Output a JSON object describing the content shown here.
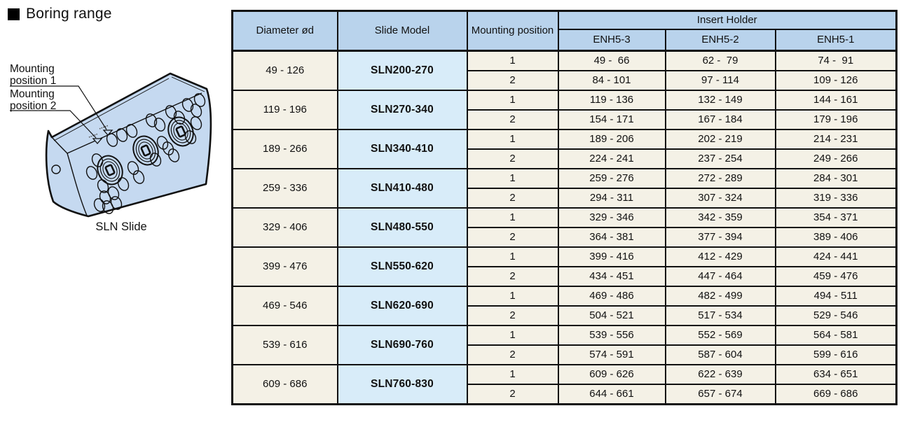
{
  "page": {
    "section_title": "Boring range"
  },
  "diagram": {
    "mounting_position_1": {
      "line1": "Mounting",
      "line2": "position 1"
    },
    "mounting_position_2": {
      "line1": "Mounting",
      "line2": "position 2"
    },
    "caption": "SLN Slide",
    "block_fill_color": "#c5d9f0",
    "outline_color": "#111111"
  },
  "table": {
    "accent_header_color": "#b9d3ec",
    "model_cell_color": "#d8ecf9",
    "body_color": "#f4f1e6",
    "headers": {
      "diameter": "Diameter ød",
      "slide_model": "Slide Model",
      "mounting_position": "Mounting position",
      "insert_holder": "Insert Holder",
      "enh_columns": [
        "ENH5-3",
        "ENH5-2",
        "ENH5-1"
      ]
    },
    "groups": [
      {
        "diameter": "49 - 126",
        "model": "SLN200-270",
        "rows": [
          {
            "position": "1",
            "values": [
              "49 -  66",
              "62 -  79",
              "74 -  91"
            ]
          },
          {
            "position": "2",
            "values": [
              "84 - 101",
              "97 - 114",
              "109 - 126"
            ]
          }
        ]
      },
      {
        "diameter": "119 - 196",
        "model": "SLN270-340",
        "rows": [
          {
            "position": "1",
            "values": [
              "119 - 136",
              "132 - 149",
              "144 - 161"
            ]
          },
          {
            "position": "2",
            "values": [
              "154 - 171",
              "167 - 184",
              "179 - 196"
            ]
          }
        ]
      },
      {
        "diameter": "189 - 266",
        "model": "SLN340-410",
        "rows": [
          {
            "position": "1",
            "values": [
              "189 - 206",
              "202 - 219",
              "214 - 231"
            ]
          },
          {
            "position": "2",
            "values": [
              "224 - 241",
              "237 - 254",
              "249 - 266"
            ]
          }
        ]
      },
      {
        "diameter": "259 - 336",
        "model": "SLN410-480",
        "rows": [
          {
            "position": "1",
            "values": [
              "259 - 276",
              "272 - 289",
              "284 - 301"
            ]
          },
          {
            "position": "2",
            "values": [
              "294 - 311",
              "307 - 324",
              "319 - 336"
            ]
          }
        ]
      },
      {
        "diameter": "329 - 406",
        "model": "SLN480-550",
        "rows": [
          {
            "position": "1",
            "values": [
              "329 - 346",
              "342 - 359",
              "354 - 371"
            ]
          },
          {
            "position": "2",
            "values": [
              "364 - 381",
              "377 - 394",
              "389 - 406"
            ]
          }
        ]
      },
      {
        "diameter": "399 - 476",
        "model": "SLN550-620",
        "rows": [
          {
            "position": "1",
            "values": [
              "399 - 416",
              "412 - 429",
              "424 - 441"
            ]
          },
          {
            "position": "2",
            "values": [
              "434 - 451",
              "447 - 464",
              "459 - 476"
            ]
          }
        ]
      },
      {
        "diameter": "469 - 546",
        "model": "SLN620-690",
        "rows": [
          {
            "position": "1",
            "values": [
              "469 - 486",
              "482 - 499",
              "494 - 511"
            ]
          },
          {
            "position": "2",
            "values": [
              "504 - 521",
              "517 - 534",
              "529 - 546"
            ]
          }
        ]
      },
      {
        "diameter": "539 - 616",
        "model": "SLN690-760",
        "rows": [
          {
            "position": "1",
            "values": [
              "539 - 556",
              "552 - 569",
              "564 - 581"
            ]
          },
          {
            "position": "2",
            "values": [
              "574 - 591",
              "587 - 604",
              "599 - 616"
            ]
          }
        ]
      },
      {
        "diameter": "609 - 686",
        "model": "SLN760-830",
        "rows": [
          {
            "position": "1",
            "values": [
              "609 - 626",
              "622 - 639",
              "634 - 651"
            ]
          },
          {
            "position": "2",
            "values": [
              "644 - 661",
              "657 - 674",
              "669 - 686"
            ]
          }
        ]
      }
    ]
  }
}
